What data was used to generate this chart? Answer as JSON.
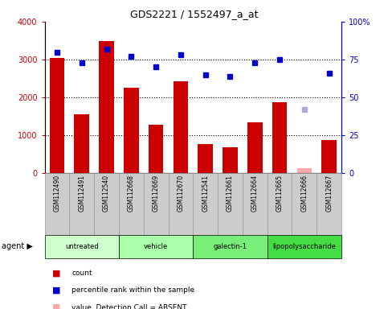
{
  "title": "GDS2221 / 1552497_a_at",
  "samples": [
    "GSM112490",
    "GSM112491",
    "GSM112540",
    "GSM112668",
    "GSM112669",
    "GSM112670",
    "GSM112541",
    "GSM112661",
    "GSM112664",
    "GSM112665",
    "GSM112666",
    "GSM112667"
  ],
  "counts": [
    3050,
    1560,
    3480,
    2260,
    1270,
    2430,
    770,
    680,
    1340,
    1870,
    120,
    870
  ],
  "percentile_ranks": [
    80,
    73,
    82,
    77,
    70,
    78,
    65,
    64,
    73,
    75,
    null,
    66
  ],
  "absent_value": [
    null,
    null,
    null,
    null,
    null,
    null,
    null,
    null,
    null,
    null,
    120,
    null
  ],
  "absent_rank": [
    null,
    null,
    null,
    null,
    null,
    null,
    null,
    null,
    null,
    null,
    42,
    null
  ],
  "groups": [
    {
      "label": "untreated",
      "start": 0,
      "end": 3,
      "color": "#ccffcc"
    },
    {
      "label": "vehicle",
      "start": 3,
      "end": 6,
      "color": "#aaffaa"
    },
    {
      "label": "galectin-1",
      "start": 6,
      "end": 9,
      "color": "#77ee77"
    },
    {
      "label": "lipopolysaccharide",
      "start": 9,
      "end": 12,
      "color": "#44dd44"
    }
  ],
  "ylim_left": [
    0,
    4000
  ],
  "ylim_right": [
    0,
    100
  ],
  "yticks_left": [
    0,
    1000,
    2000,
    3000,
    4000
  ],
  "yticks_right": [
    0,
    25,
    50,
    75,
    100
  ],
  "bar_color": "#cc0000",
  "dot_color": "#0000cc",
  "absent_bar_color": "#ffaaaa",
  "absent_dot_color": "#aaaadd",
  "background_color": "#ffffff"
}
